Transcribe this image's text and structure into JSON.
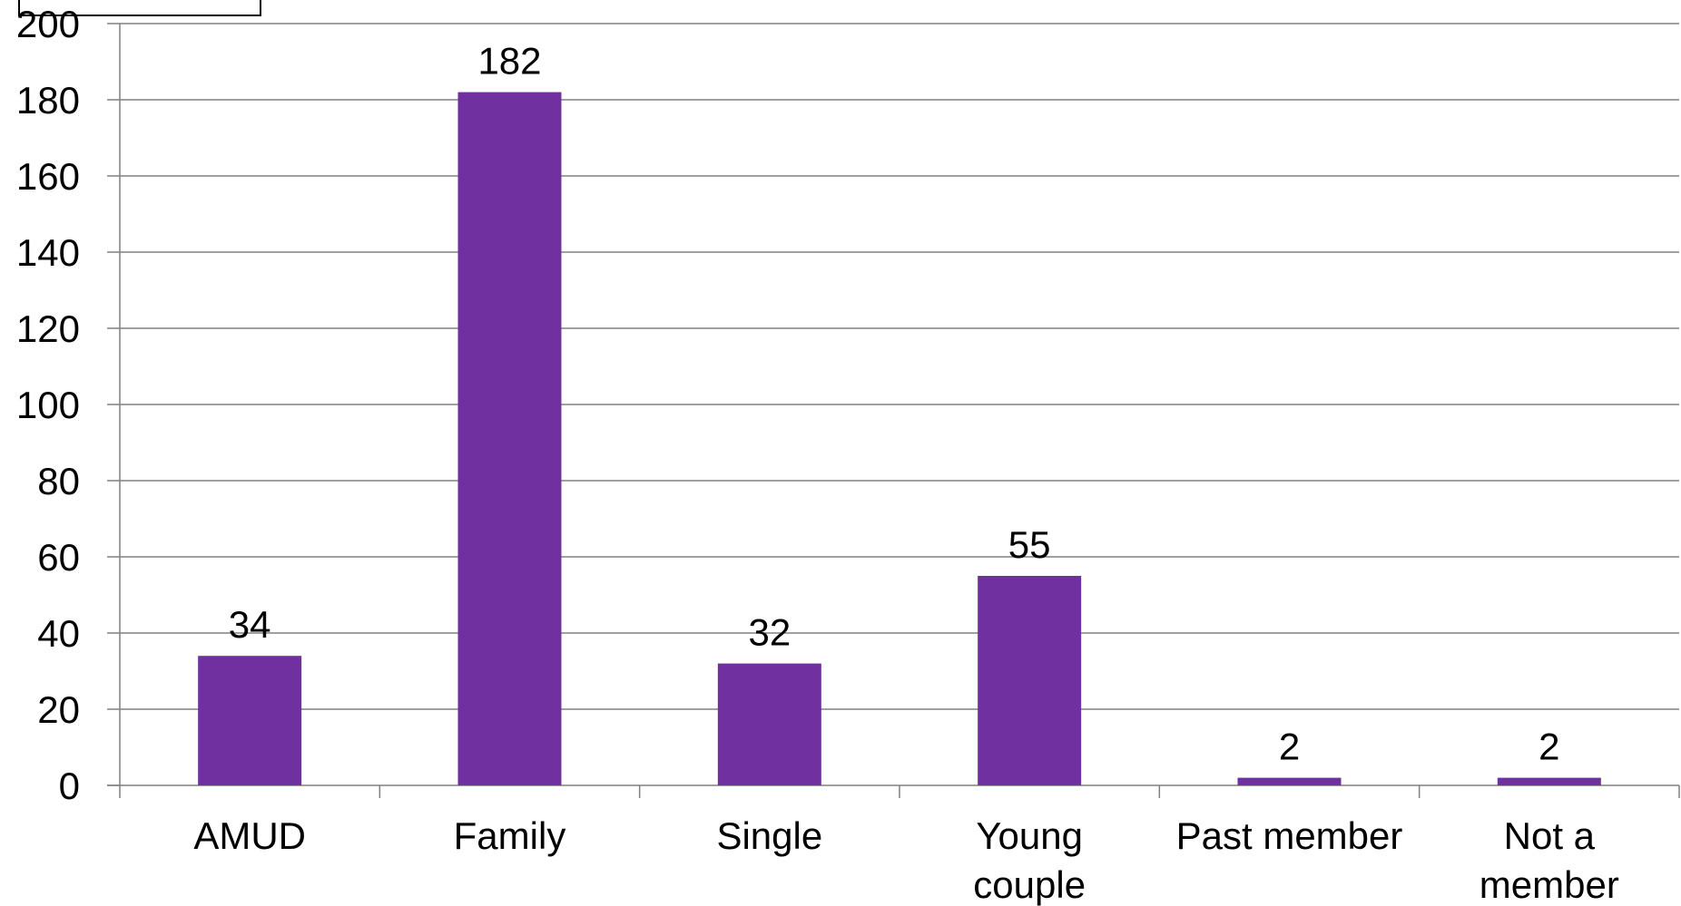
{
  "chart_data": {
    "type": "bar",
    "categories": [
      "AMUD",
      "Family",
      "Single",
      "Young couple",
      "Past member",
      "Not a member"
    ],
    "category_lines": [
      [
        "AMUD"
      ],
      [
        "Family"
      ],
      [
        "Single"
      ],
      [
        "Young",
        "couple"
      ],
      [
        "Past member"
      ],
      [
        "Not a",
        "member"
      ]
    ],
    "values": [
      34,
      182,
      32,
      55,
      2,
      2
    ],
    "data_labels": [
      "34",
      "182",
      "32",
      "55",
      "2",
      "2"
    ],
    "ylim": [
      0,
      200
    ],
    "yticks": [
      0,
      20,
      40,
      60,
      80,
      100,
      120,
      140,
      160,
      180,
      200
    ],
    "grid": true,
    "title": "",
    "xlabel": "",
    "ylabel": "",
    "colors": {
      "bar": "#7030A0",
      "grid": "#808080",
      "axis": "#808080",
      "text": "#000000"
    }
  }
}
